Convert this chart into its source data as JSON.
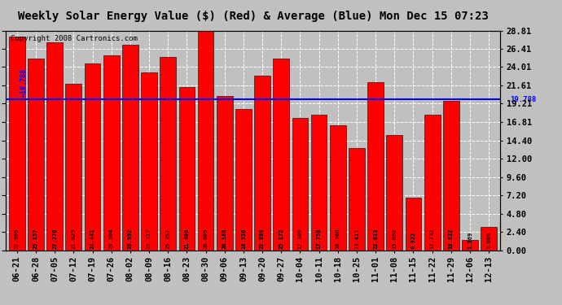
{
  "title": "Weekly Solar Energy Value ($) (Red) & Average (Blue) Mon Dec 15 07:23",
  "copyright": "Copyright 2008 Cartronics.com",
  "categories": [
    "06-21",
    "06-28",
    "07-05",
    "07-12",
    "07-19",
    "07-26",
    "08-02",
    "08-09",
    "08-16",
    "08-23",
    "08-30",
    "09-06",
    "09-13",
    "09-20",
    "09-27",
    "10-04",
    "10-11",
    "10-18",
    "10-25",
    "11-01",
    "11-08",
    "11-15",
    "11-22",
    "11-29",
    "12-06",
    "12-13"
  ],
  "values": [
    27.999,
    25.157,
    27.27,
    21.825,
    24.441,
    25.504,
    26.992,
    23.317,
    25.357,
    21.406,
    28.809,
    20.186,
    18.52,
    22.889,
    25.172,
    17.309,
    17.758,
    16.368,
    13.411,
    22.033,
    15.092,
    6.922,
    17.732,
    19.632,
    1.369,
    3.009
  ],
  "average": 19.788,
  "bar_color": "#ff0000",
  "avg_line_color": "#0000ff",
  "background_color": "#c0c0c0",
  "plot_bg_color": "#c0c0c0",
  "grid_color": "#ffffff",
  "title_color": "#000000",
  "bar_label_color": "#000000",
  "ylim": [
    0,
    28.81
  ],
  "yticks": [
    0.0,
    2.4,
    4.8,
    7.2,
    9.6,
    12.0,
    14.4,
    16.81,
    19.21,
    21.61,
    24.01,
    26.41,
    28.81
  ],
  "avg_label": "19.788",
  "title_fontsize": 10,
  "bar_label_fontsize": 5.0,
  "tick_fontsize": 7.5,
  "copyright_fontsize": 6.5
}
